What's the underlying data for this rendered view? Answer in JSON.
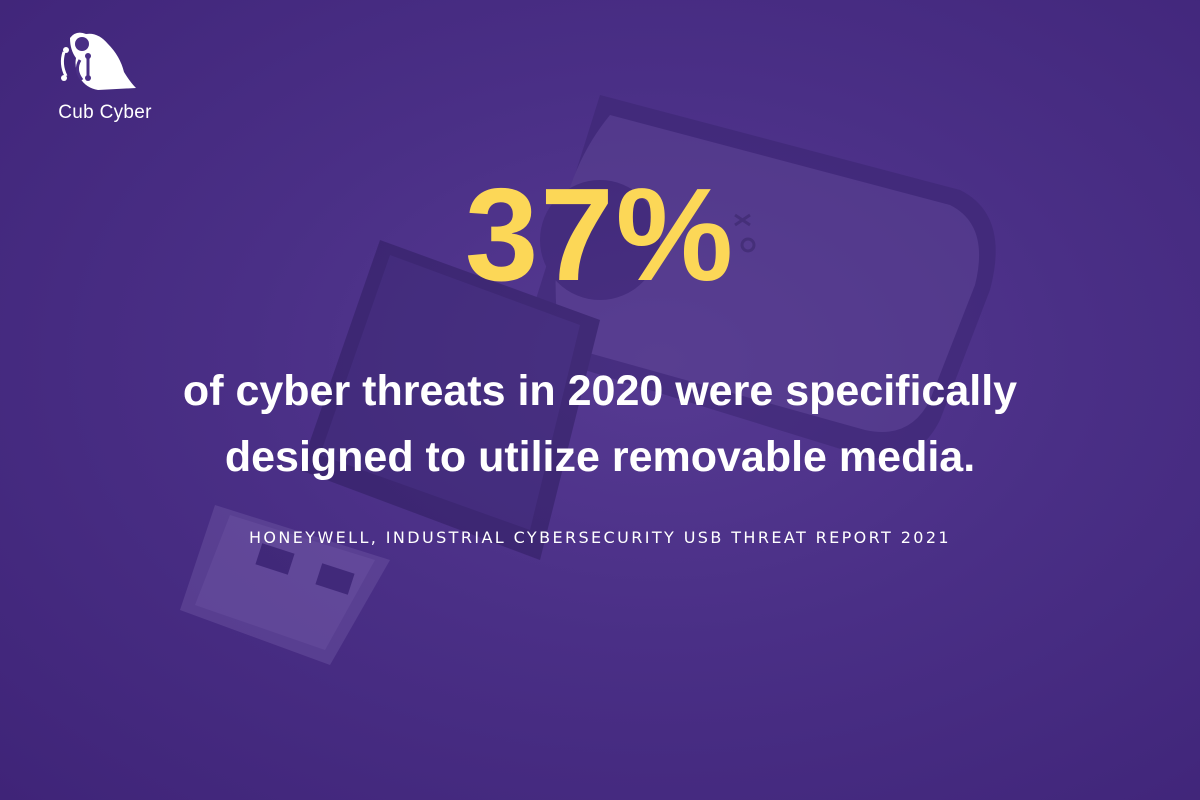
{
  "brand": {
    "name": "Cub Cyber"
  },
  "headline": {
    "value": "37%"
  },
  "body": {
    "text": "of cyber threats in 2020 were specifically designed to utilize removable media."
  },
  "source": {
    "text": "HONEYWELL, INDUSTRIAL CYBERSECURITY USB THREAT REPORT 2021"
  },
  "colors": {
    "background": "#4a2f86",
    "accent": "#fcd757",
    "text": "#ffffff"
  },
  "icons": {
    "logo": "cub-cyber-logo-icon"
  }
}
